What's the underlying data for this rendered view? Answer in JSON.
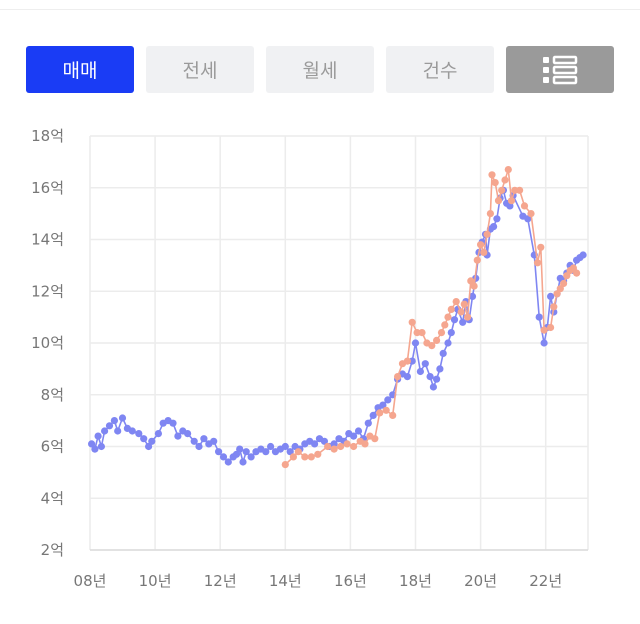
{
  "tabs": {
    "sale": "매매",
    "jeonse": "전세",
    "monthly": "월세",
    "count": "건수"
  },
  "icons": {
    "list_view": "list-view-icon"
  },
  "colors": {
    "accent": "#1a3cf5",
    "series_blue": "#7f86f2",
    "series_pink": "#f5a68f",
    "grid": "#ececec"
  },
  "chart_data": {
    "type": "line",
    "x_unit": "year",
    "xlim": [
      2008,
      2023.3
    ],
    "ylim": [
      2,
      18
    ],
    "x_ticks": [
      {
        "v": 2008,
        "label": "08년"
      },
      {
        "v": 2010,
        "label": "10년"
      },
      {
        "v": 2012,
        "label": "12년"
      },
      {
        "v": 2014,
        "label": "14년"
      },
      {
        "v": 2016,
        "label": "16년"
      },
      {
        "v": 2018,
        "label": "18년"
      },
      {
        "v": 2020,
        "label": "20년"
      },
      {
        "v": 2022,
        "label": "22년"
      }
    ],
    "y_ticks": [
      {
        "v": 2,
        "label": "2억"
      },
      {
        "v": 4,
        "label": "4억"
      },
      {
        "v": 6,
        "label": "6억"
      },
      {
        "v": 8,
        "label": "8억"
      },
      {
        "v": 10,
        "label": "10억"
      },
      {
        "v": 12,
        "label": "12억"
      },
      {
        "v": 14,
        "label": "14억"
      },
      {
        "v": 16,
        "label": "16억"
      },
      {
        "v": 18,
        "label": "18억"
      }
    ],
    "grid": true,
    "legend": "none",
    "series": [
      {
        "color": "#7f86f2",
        "points": [
          [
            2008.05,
            6.1
          ],
          [
            2008.15,
            5.9
          ],
          [
            2008.25,
            6.4
          ],
          [
            2008.35,
            6.0
          ],
          [
            2008.45,
            6.6
          ],
          [
            2008.6,
            6.8
          ],
          [
            2008.75,
            7.0
          ],
          [
            2008.85,
            6.6
          ],
          [
            2009.0,
            7.1
          ],
          [
            2009.15,
            6.7
          ],
          [
            2009.3,
            6.6
          ],
          [
            2009.5,
            6.5
          ],
          [
            2009.65,
            6.3
          ],
          [
            2009.8,
            6.0
          ],
          [
            2009.9,
            6.2
          ],
          [
            2010.1,
            6.5
          ],
          [
            2010.25,
            6.9
          ],
          [
            2010.4,
            7.0
          ],
          [
            2010.55,
            6.9
          ],
          [
            2010.7,
            6.4
          ],
          [
            2010.85,
            6.6
          ],
          [
            2011.0,
            6.5
          ],
          [
            2011.2,
            6.2
          ],
          [
            2011.35,
            6.0
          ],
          [
            2011.5,
            6.3
          ],
          [
            2011.65,
            6.1
          ],
          [
            2011.8,
            6.2
          ],
          [
            2011.95,
            5.8
          ],
          [
            2012.1,
            5.6
          ],
          [
            2012.25,
            5.4
          ],
          [
            2012.4,
            5.6
          ],
          [
            2012.5,
            5.7
          ],
          [
            2012.6,
            5.9
          ],
          [
            2012.7,
            5.4
          ],
          [
            2012.8,
            5.8
          ],
          [
            2012.95,
            5.6
          ],
          [
            2013.1,
            5.8
          ],
          [
            2013.25,
            5.9
          ],
          [
            2013.4,
            5.8
          ],
          [
            2013.55,
            6.0
          ],
          [
            2013.7,
            5.8
          ],
          [
            2013.85,
            5.9
          ],
          [
            2014.0,
            6.0
          ],
          [
            2014.15,
            5.8
          ],
          [
            2014.3,
            6.0
          ],
          [
            2014.45,
            5.9
          ],
          [
            2014.6,
            6.1
          ],
          [
            2014.75,
            6.2
          ],
          [
            2014.9,
            6.1
          ],
          [
            2015.05,
            6.3
          ],
          [
            2015.2,
            6.2
          ],
          [
            2015.35,
            6.0
          ],
          [
            2015.5,
            6.1
          ],
          [
            2015.65,
            6.3
          ],
          [
            2015.8,
            6.2
          ],
          [
            2015.95,
            6.5
          ],
          [
            2016.1,
            6.4
          ],
          [
            2016.25,
            6.6
          ],
          [
            2016.4,
            6.3
          ],
          [
            2016.55,
            6.9
          ],
          [
            2016.7,
            7.2
          ],
          [
            2016.85,
            7.5
          ],
          [
            2017.0,
            7.6
          ],
          [
            2017.15,
            7.8
          ],
          [
            2017.3,
            8.0
          ],
          [
            2017.45,
            8.6
          ],
          [
            2017.6,
            8.8
          ],
          [
            2017.75,
            8.7
          ],
          [
            2017.9,
            9.3
          ],
          [
            2018.0,
            10.0
          ],
          [
            2018.15,
            8.9
          ],
          [
            2018.3,
            9.2
          ],
          [
            2018.45,
            8.7
          ],
          [
            2018.55,
            8.3
          ],
          [
            2018.65,
            8.6
          ],
          [
            2018.75,
            9.0
          ],
          [
            2018.85,
            9.6
          ],
          [
            2019.0,
            10.0
          ],
          [
            2019.1,
            10.4
          ],
          [
            2019.2,
            10.9
          ],
          [
            2019.3,
            11.3
          ],
          [
            2019.45,
            10.8
          ],
          [
            2019.55,
            11.6
          ],
          [
            2019.65,
            10.9
          ],
          [
            2019.75,
            11.8
          ],
          [
            2019.85,
            12.5
          ],
          [
            2019.95,
            13.5
          ],
          [
            2020.05,
            13.9
          ],
          [
            2020.15,
            14.2
          ],
          [
            2020.2,
            13.4
          ],
          [
            2020.3,
            14.4
          ],
          [
            2020.4,
            14.5
          ],
          [
            2020.5,
            14.8
          ],
          [
            2020.6,
            15.6
          ],
          [
            2020.7,
            15.9
          ],
          [
            2020.8,
            15.4
          ],
          [
            2020.9,
            15.3
          ],
          [
            2021.0,
            15.7
          ],
          [
            2021.3,
            14.9
          ],
          [
            2021.45,
            14.8
          ],
          [
            2021.65,
            13.4
          ],
          [
            2021.8,
            11.0
          ],
          [
            2021.95,
            10.0
          ],
          [
            2022.05,
            10.6
          ],
          [
            2022.15,
            11.8
          ],
          [
            2022.25,
            11.2
          ],
          [
            2022.35,
            11.9
          ],
          [
            2022.45,
            12.5
          ],
          [
            2022.55,
            12.4
          ],
          [
            2022.65,
            12.7
          ],
          [
            2022.75,
            13.0
          ],
          [
            2022.85,
            12.8
          ],
          [
            2022.95,
            13.2
          ],
          [
            2023.05,
            13.3
          ],
          [
            2023.15,
            13.4
          ]
        ]
      },
      {
        "color": "#f5a68f",
        "points": [
          [
            2014.0,
            5.3
          ],
          [
            2014.25,
            5.6
          ],
          [
            2014.4,
            5.8
          ],
          [
            2014.6,
            5.6
          ],
          [
            2014.8,
            5.6
          ],
          [
            2015.0,
            5.7
          ],
          [
            2015.3,
            6.0
          ],
          [
            2015.5,
            5.9
          ],
          [
            2015.7,
            6.0
          ],
          [
            2015.9,
            6.1
          ],
          [
            2016.1,
            6.0
          ],
          [
            2016.3,
            6.2
          ],
          [
            2016.45,
            6.1
          ],
          [
            2016.6,
            6.4
          ],
          [
            2016.75,
            6.3
          ],
          [
            2016.9,
            7.3
          ],
          [
            2017.1,
            7.4
          ],
          [
            2017.3,
            7.2
          ],
          [
            2017.45,
            8.7
          ],
          [
            2017.6,
            9.2
          ],
          [
            2017.75,
            9.3
          ],
          [
            2017.9,
            10.8
          ],
          [
            2018.05,
            10.4
          ],
          [
            2018.2,
            10.4
          ],
          [
            2018.35,
            10.0
          ],
          [
            2018.5,
            9.9
          ],
          [
            2018.65,
            10.1
          ],
          [
            2018.8,
            10.4
          ],
          [
            2018.9,
            10.7
          ],
          [
            2019.0,
            11.0
          ],
          [
            2019.1,
            11.3
          ],
          [
            2019.25,
            11.6
          ],
          [
            2019.4,
            11.2
          ],
          [
            2019.5,
            11.5
          ],
          [
            2019.6,
            11.0
          ],
          [
            2019.7,
            12.4
          ],
          [
            2019.8,
            12.2
          ],
          [
            2019.9,
            13.2
          ],
          [
            2020.0,
            13.8
          ],
          [
            2020.1,
            13.5
          ],
          [
            2020.2,
            14.2
          ],
          [
            2020.3,
            15.0
          ],
          [
            2020.35,
            16.5
          ],
          [
            2020.45,
            16.2
          ],
          [
            2020.55,
            15.5
          ],
          [
            2020.65,
            15.9
          ],
          [
            2020.75,
            16.3
          ],
          [
            2020.85,
            16.7
          ],
          [
            2020.95,
            15.5
          ],
          [
            2021.05,
            15.9
          ],
          [
            2021.2,
            15.9
          ],
          [
            2021.35,
            15.3
          ],
          [
            2021.55,
            15.0
          ],
          [
            2021.75,
            13.1
          ],
          [
            2021.85,
            13.7
          ],
          [
            2021.95,
            10.5
          ],
          [
            2022.15,
            10.6
          ],
          [
            2022.25,
            11.4
          ],
          [
            2022.35,
            11.9
          ],
          [
            2022.45,
            12.1
          ],
          [
            2022.55,
            12.3
          ],
          [
            2022.65,
            12.6
          ],
          [
            2022.75,
            12.8
          ],
          [
            2022.85,
            12.9
          ],
          [
            2022.95,
            12.7
          ]
        ]
      }
    ]
  }
}
